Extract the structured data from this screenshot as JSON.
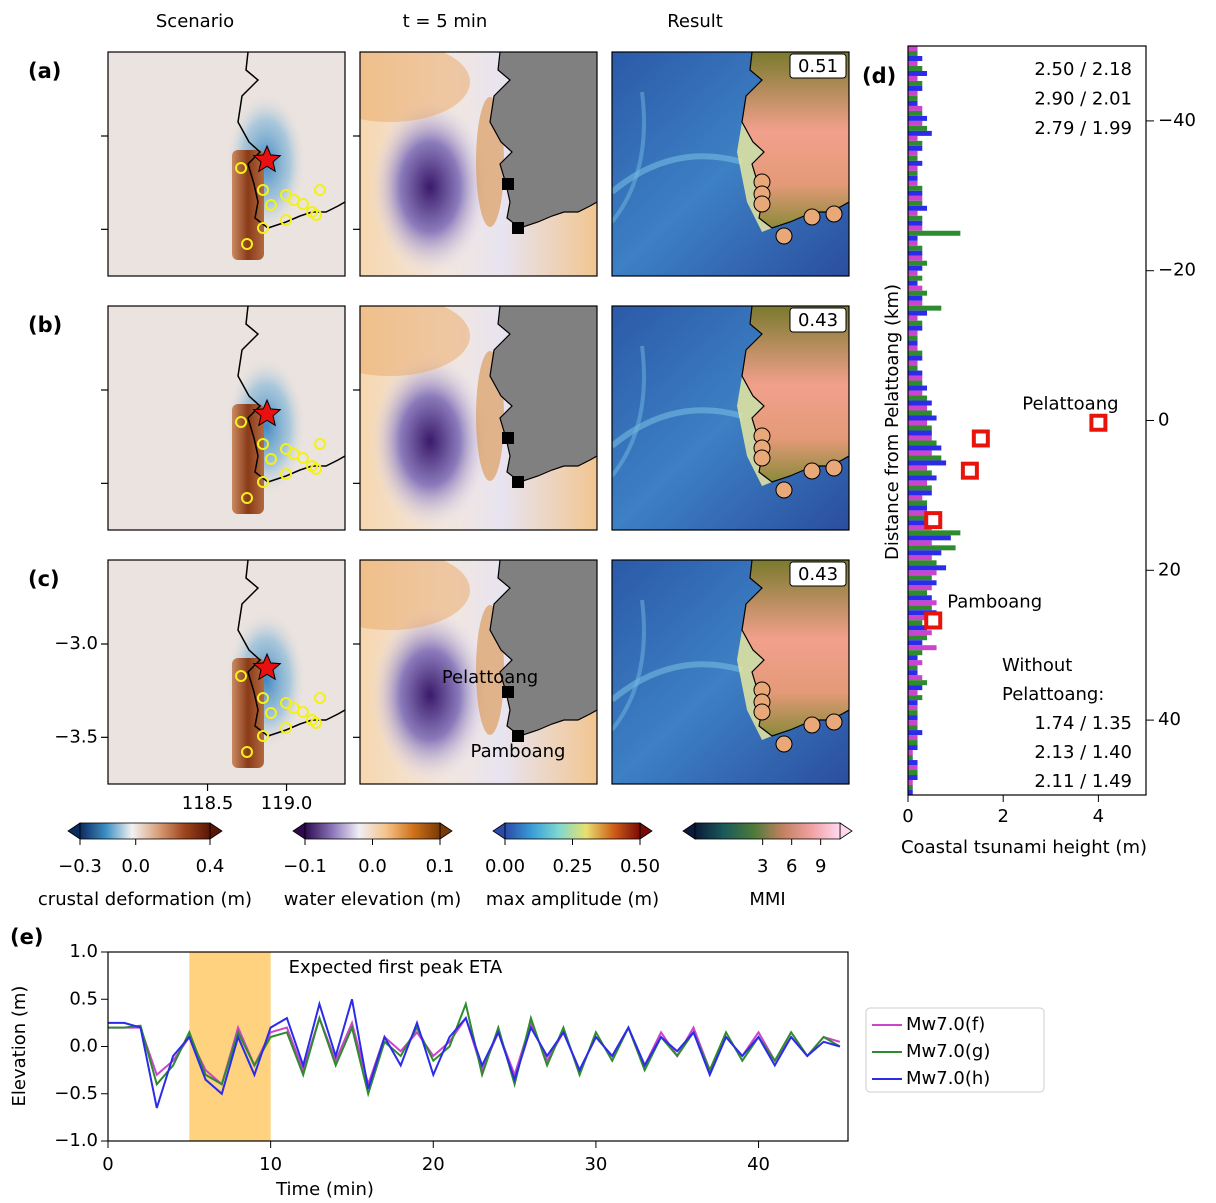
{
  "column_titles": [
    "Scenario",
    "t = 5 min",
    "Result"
  ],
  "map_panels": [
    {
      "label": "(a)",
      "score": 0.51
    },
    {
      "label": "(b)",
      "score": 0.43
    },
    {
      "label": "(c)",
      "score": 0.43
    }
  ],
  "map_axes": {
    "xlim": [
      117.87,
      119.37
    ],
    "xticks": [
      118.5,
      {
        "value": 119.0,
        "label": "119.0"
      }
    ],
    "ylim": [
      -3.75,
      -2.55
    ],
    "yticks": [
      {
        "value": -3.0,
        "label": "−3.0"
      },
      {
        "value": -3.5,
        "label": "−3.5"
      }
    ]
  },
  "station_labels": [
    "Pelattoang",
    "Pamboang"
  ],
  "colorbars": [
    {
      "label": "crustal deformation (m)",
      "lim": [
        -0.3,
        0.4
      ],
      "ticks": [
        {
          "value": -0.3,
          "label": "−0.3"
        },
        {
          "value": 0.0,
          "label": "0.0"
        },
        0.4
      ],
      "colors": [
        "#0b2a5e",
        "#3d8fc4",
        "#f2f2f2",
        "#d9a07a",
        "#a0461e",
        "#5a1505"
      ]
    },
    {
      "label": "water elevation (m)",
      "lim": [
        -0.1,
        0.1
      ],
      "ticks": [
        {
          "value": -0.1,
          "label": "−0.1"
        },
        {
          "value": 0.0,
          "label": "0.0"
        },
        0.1
      ],
      "colors": [
        "#2d0a4e",
        "#8a74b8",
        "#f0eef5",
        "#f5c48a",
        "#d0731a",
        "#7a3a05"
      ]
    },
    {
      "label": "max amplitude (m)",
      "lim": [
        0,
        0.5
      ],
      "ticks": [
        {
          "value": 0,
          "label": "0.00"
        },
        0.25,
        {
          "value": 0.5,
          "label": "0.50"
        }
      ],
      "colors": [
        "#2a4aa8",
        "#3a9ed8",
        "#7fd8d0",
        "#e8e070",
        "#d0601a",
        "#7a0a05"
      ]
    },
    {
      "label": "MMI",
      "lim": [
        -4,
        11
      ],
      "ticks": [
        3,
        6,
        9
      ],
      "colors": [
        "#0a1a3a",
        "#1a5a5a",
        "#4a7a3a",
        "#c08060",
        "#f0a0a0",
        "#ffd8f0"
      ]
    }
  ],
  "chart_data": [
    {
      "type": "bar",
      "orientation": "horizontal",
      "label": "(d)",
      "xlabel": "Coastal tsunami height (m)",
      "ylabel": "Distance from Pelattoang (km)",
      "xlim": [
        0,
        5
      ],
      "xticks": [
        0,
        2,
        4
      ],
      "ylim": [
        -50,
        50
      ],
      "yticks": [
        {
          "value": -40,
          "label": "−40"
        },
        {
          "value": -20,
          "label": "−20"
        },
        0,
        20,
        40
      ],
      "y": [
        -49,
        -47,
        -45,
        -43,
        -41,
        -39,
        -37,
        -35,
        -33,
        -31,
        -29,
        -27,
        -25,
        -23,
        -21,
        -19,
        -17,
        -15,
        -13,
        -11,
        -9,
        -7,
        -5,
        -3,
        -1,
        1,
        3,
        5,
        7,
        9,
        11,
        13,
        15,
        17,
        19,
        21,
        23,
        25,
        27,
        29,
        31,
        33,
        35,
        37,
        39,
        41,
        43,
        45,
        47,
        49
      ],
      "series": [
        {
          "color": "#cc44cc",
          "values": [
            0.2,
            0.2,
            0.2,
            0.2,
            0.3,
            0.3,
            0.2,
            0.2,
            0.2,
            0.2,
            0.3,
            0.2,
            0.3,
            0.2,
            0.3,
            0.2,
            0.3,
            0.3,
            0.2,
            0.2,
            0.2,
            0.2,
            0.3,
            0.3,
            0.4,
            0.4,
            0.5,
            0.5,
            0.4,
            0.4,
            0.3,
            0.4,
            0.5,
            0.5,
            0.5,
            0.6,
            0.5,
            0.6,
            0.4,
            0.5,
            0.6,
            0.3,
            0.3,
            0.2,
            0.2,
            0.2,
            0.2,
            0.1,
            0.2,
            0.1
          ]
        },
        {
          "color": "#2e8b2e",
          "values": [
            0.2,
            0.3,
            0.3,
            0.2,
            0.3,
            0.4,
            0.3,
            0.2,
            0.2,
            0.3,
            0.3,
            0.3,
            1.1,
            0.3,
            0.4,
            0.3,
            0.4,
            0.7,
            0.3,
            0.2,
            0.3,
            0.2,
            0.3,
            0.4,
            0.5,
            0.5,
            0.6,
            0.7,
            0.5,
            0.5,
            0.4,
            0.5,
            1.1,
            1.0,
            0.6,
            0.5,
            0.4,
            0.5,
            0.3,
            0.4,
            0.3,
            0.2,
            0.4,
            0.3,
            0.2,
            0.2,
            0.2,
            0.1,
            0.2,
            0.1
          ]
        },
        {
          "color": "#2b2bea",
          "values": [
            0.3,
            0.4,
            0.3,
            0.2,
            0.4,
            0.5,
            0.3,
            0.3,
            0.2,
            0.3,
            0.4,
            0.3,
            0.2,
            0.3,
            0.3,
            0.2,
            0.3,
            0.4,
            0.3,
            0.2,
            0.3,
            0.3,
            0.4,
            0.5,
            0.6,
            0.5,
            0.7,
            0.8,
            0.6,
            0.5,
            0.4,
            0.6,
            0.9,
            0.7,
            0.8,
            0.6,
            0.5,
            0.6,
            0.4,
            0.3,
            0.2,
            0.2,
            0.3,
            0.2,
            0.2,
            0.3,
            0.2,
            0.2,
            0.2,
            0.1
          ]
        }
      ],
      "observed": {
        "color": "#e8140c",
        "x": [
          4.0,
          1.53,
          1.3,
          0.53,
          0.53
        ],
        "y": [
          0.3,
          2.4,
          6.7,
          13.3,
          26.7
        ]
      },
      "annotations": [
        "Pelattoang",
        "Pamboang"
      ],
      "stats": [
        {
          "text": "2.50 / 2.18",
          "color": "#cc22cc"
        },
        {
          "text": "2.90 / 2.01",
          "color": "#1f8a1f"
        },
        {
          "text": "2.79 / 1.99",
          "color": "#2020e0"
        }
      ],
      "note_lines": [
        "Without",
        "Pelattoang:"
      ],
      "stats_without": [
        {
          "text": "1.74 / 1.35",
          "color": "#cc22cc"
        },
        {
          "text": "2.13 / 1.40",
          "color": "#1f8a1f"
        },
        {
          "text": "2.11 / 1.49",
          "color": "#2020e0"
        }
      ]
    },
    {
      "type": "line",
      "label": "(e)",
      "xlabel": "Time (min)",
      "ylabel": "Elevation (m)",
      "xlim": [
        0,
        45.5
      ],
      "xticks": [
        0,
        10,
        20,
        30,
        40
      ],
      "ylim": [
        -1,
        1
      ],
      "yticks": [
        {
          "value": -1,
          "label": "−1.0"
        },
        {
          "value": -0.5,
          "label": "−0.5"
        },
        {
          "value": 0,
          "label": "0.0"
        },
        0.5,
        {
          "value": 1,
          "label": "1.0"
        }
      ],
      "x": [
        0,
        1,
        2,
        3,
        4,
        5,
        6,
        7,
        8,
        9,
        10,
        11,
        12,
        13,
        14,
        15,
        16,
        17,
        18,
        19,
        20,
        21,
        22,
        23,
        24,
        25,
        26,
        27,
        28,
        29,
        30,
        31,
        32,
        33,
        34,
        35,
        36,
        37,
        38,
        39,
        40,
        41,
        42,
        43,
        44,
        45
      ],
      "series": [
        {
          "name": "Mw7.0(f)",
          "color": "#cc44cc",
          "values": [
            0.2,
            0.2,
            0.2,
            -0.3,
            -0.15,
            0.1,
            -0.25,
            -0.4,
            0.2,
            -0.2,
            0.15,
            0.2,
            -0.25,
            0.3,
            -0.15,
            0.25,
            -0.4,
            0.1,
            -0.05,
            0.15,
            -0.1,
            0.05,
            0.3,
            -0.25,
            0.15,
            -0.3,
            0.25,
            -0.15,
            0.15,
            -0.25,
            0.1,
            -0.1,
            0.2,
            -0.2,
            0.15,
            -0.1,
            0.2,
            -0.25,
            0.1,
            -0.1,
            0.15,
            -0.15,
            0.1,
            -0.1,
            0.1,
            0.05
          ]
        },
        {
          "name": "Mw7.0(g)",
          "color": "#2e8b2e",
          "values": [
            0.2,
            0.2,
            0.22,
            -0.4,
            -0.2,
            0.15,
            -0.3,
            -0.4,
            0.15,
            -0.2,
            0.1,
            0.15,
            -0.3,
            0.3,
            -0.2,
            0.2,
            -0.5,
            0.05,
            -0.1,
            0.2,
            -0.15,
            0.0,
            0.45,
            -0.3,
            0.2,
            -0.4,
            0.3,
            -0.2,
            0.2,
            -0.3,
            0.15,
            -0.15,
            0.2,
            -0.25,
            0.1,
            -0.1,
            0.15,
            -0.25,
            0.15,
            -0.15,
            0.1,
            -0.15,
            0.15,
            -0.1,
            0.1,
            0.0
          ]
        },
        {
          "name": "Mw7.0(h)",
          "color": "#2b2bea",
          "values": [
            0.25,
            0.25,
            0.2,
            -0.65,
            -0.1,
            0.1,
            -0.35,
            -0.5,
            0.1,
            -0.3,
            0.2,
            0.3,
            -0.2,
            0.45,
            -0.1,
            0.5,
            -0.45,
            0.1,
            -0.2,
            0.25,
            -0.3,
            0.1,
            0.3,
            -0.2,
            0.15,
            -0.35,
            0.2,
            -0.1,
            0.15,
            -0.25,
            0.1,
            -0.1,
            0.2,
            -0.2,
            0.1,
            -0.05,
            0.15,
            -0.3,
            0.1,
            -0.1,
            0.1,
            -0.2,
            0.1,
            -0.1,
            0.05,
            0.0
          ]
        }
      ],
      "shaded": {
        "x": [
          5,
          10
        ],
        "color": "#ffd27f"
      },
      "annotation": {
        "text": "Expected first peak ETA",
        "color": "#f5a623"
      },
      "legend": "outside right"
    }
  ]
}
